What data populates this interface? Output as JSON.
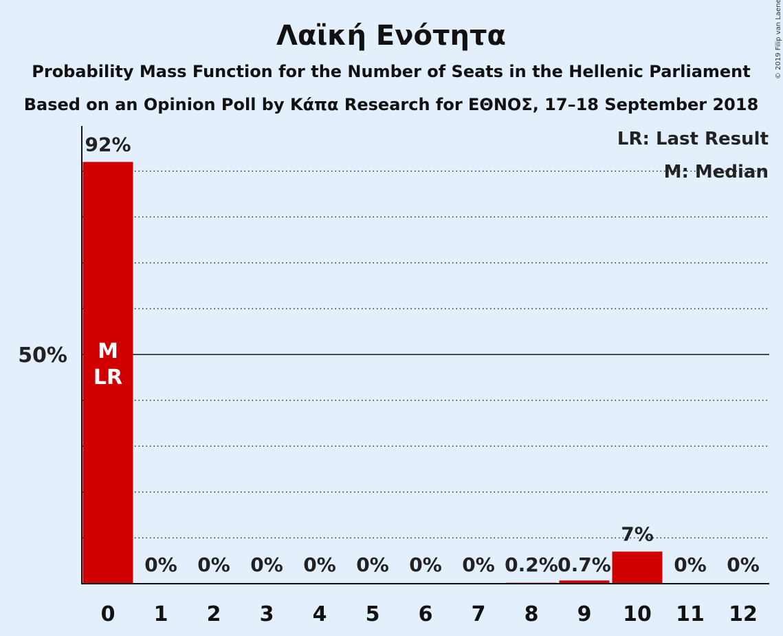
{
  "title": "Λαϊκή Ενότητα",
  "subtitle_1": "Probability Mass Function for the Number of Seats in the Hellenic Parliament",
  "subtitle_2": "Based on an Opinion Poll by Κάπα Research for ΕΘΝΟΣ, 17–18 September 2018",
  "copyright": "© 2019 Filip van Laenen",
  "legend": {
    "last_result": "LR: Last Result",
    "median": "M: Median"
  },
  "colors": {
    "background": "#E3F0FC",
    "bar": "#D00000",
    "text": "#222222"
  },
  "chart_data": {
    "type": "bar",
    "categories": [
      "0",
      "1",
      "2",
      "3",
      "4",
      "5",
      "6",
      "7",
      "8",
      "9",
      "10",
      "11",
      "12"
    ],
    "values": [
      92,
      0,
      0,
      0,
      0,
      0,
      0,
      0,
      0.2,
      0.7,
      7,
      0,
      0
    ],
    "value_labels": [
      "92%",
      "0%",
      "0%",
      "0%",
      "0%",
      "0%",
      "0%",
      "0%",
      "0.2%",
      "0.7%",
      "7%",
      "0%",
      "0%"
    ],
    "ylim": [
      0,
      100
    ],
    "y_tick_label": "50%",
    "y_tick_value": 50,
    "gridlines_dotted_every": 10,
    "median_index": 0,
    "last_result_index": 0,
    "median_marker": "M",
    "last_result_marker": "LR",
    "legend_position": "top-right",
    "grid": true
  }
}
